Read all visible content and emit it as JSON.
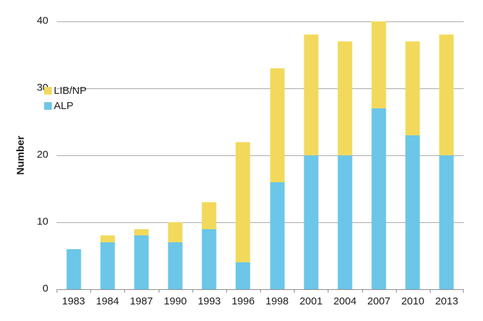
{
  "chart_data": {
    "type": "bar",
    "stacked": true,
    "title": "",
    "xlabel": "",
    "ylabel": "Number",
    "categories": [
      "1983",
      "1984",
      "1987",
      "1990",
      "1993",
      "1996",
      "1998",
      "2001",
      "2004",
      "2007",
      "2010",
      "2013"
    ],
    "series": [
      {
        "name": "ALP",
        "color": "#6bc6e8",
        "values": [
          6,
          7,
          8,
          7,
          9,
          4,
          16,
          20,
          20,
          27,
          23,
          20
        ]
      },
      {
        "name": "LIB/NP",
        "color": "#f2d95c",
        "values": [
          0,
          1,
          1,
          3,
          4,
          18,
          17,
          18,
          17,
          13,
          14,
          18
        ]
      }
    ],
    "totals": [
      6,
      8,
      9,
      10,
      13,
      22,
      33,
      38,
      37,
      40,
      37,
      38
    ],
    "ylim": [
      0,
      40
    ],
    "yticks": [
      0,
      10,
      20,
      30,
      40
    ],
    "grid": true,
    "legend": {
      "position": "inside-upper-left",
      "entries": [
        {
          "label": "LIB/NP",
          "color": "#f2d95c"
        },
        {
          "label": "ALP",
          "color": "#6bc6e8"
        }
      ]
    },
    "gridline_color": "#a8a8a8",
    "axis_color": "#8c8c8c",
    "text_color": "#1a1a1a"
  }
}
